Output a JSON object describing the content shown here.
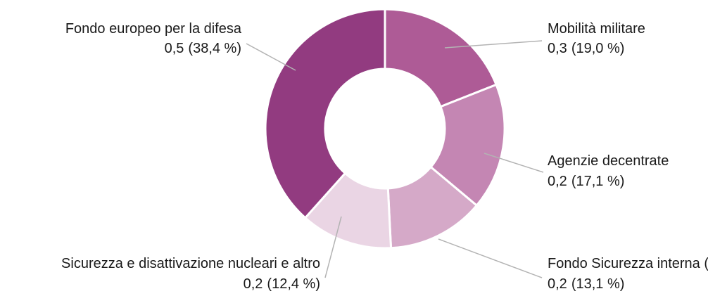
{
  "chart_data": {
    "type": "donut",
    "categories": [
      "Mobilità militare",
      "Agenzie decentrate",
      "Fondo Sicurezza interna (ISF)",
      "Sicurezza e disattivazione nucleari e altro",
      "Fondo europeo per la difesa"
    ],
    "values": [
      19.0,
      17.1,
      13.1,
      12.4,
      38.4
    ],
    "value_labels": [
      "(19,0 %)",
      "(17,1 %)",
      "(13,1 %)",
      "(12,4 %)",
      "(38,4 %)"
    ],
    "amounts": [
      0.3,
      0.2,
      0.2,
      0.2,
      0.5
    ],
    "amount_labels": [
      "0,3",
      "0,2",
      "0,2",
      "0,2",
      "0,5"
    ],
    "colors": [
      "#ae5b96",
      "#c486b3",
      "#d5a9c8",
      "#ead5e4",
      "#923b80"
    ]
  }
}
